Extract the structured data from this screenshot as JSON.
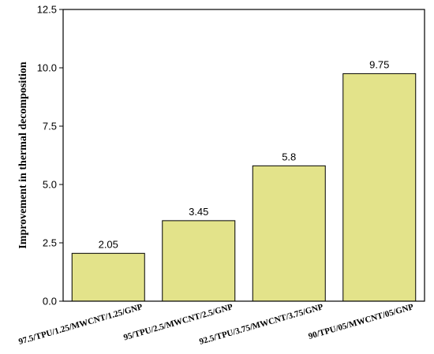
{
  "chart_data": {
    "type": "bar",
    "title": "",
    "xlabel": "",
    "ylabel": "Improvement in thermal decomposition",
    "ylim": [
      0,
      12.5
    ],
    "yticks": [
      0.0,
      2.5,
      5.0,
      7.5,
      10.0,
      12.5
    ],
    "ytick_labels": [
      "0.0",
      "2.5",
      "5.0",
      "7.5",
      "10.0",
      "12.5"
    ],
    "categories": [
      "97.5/TPU/1.25/MWCNT/1.25/GNP",
      "95/TPU/2.5/MWCNT/2.5/GNP",
      "92.5/TPU/3.75/MWCNT/3.75/GNP",
      "90/TPU/05/MWCNT/05/GNP"
    ],
    "values": [
      2.05,
      3.45,
      5.8,
      9.75
    ],
    "value_labels": [
      "2.05",
      "3.45",
      "5.8",
      "9.75"
    ],
    "bar_color": "#e3e38a",
    "bar_edge_color": "#000000",
    "grid": false,
    "legend": "none"
  }
}
